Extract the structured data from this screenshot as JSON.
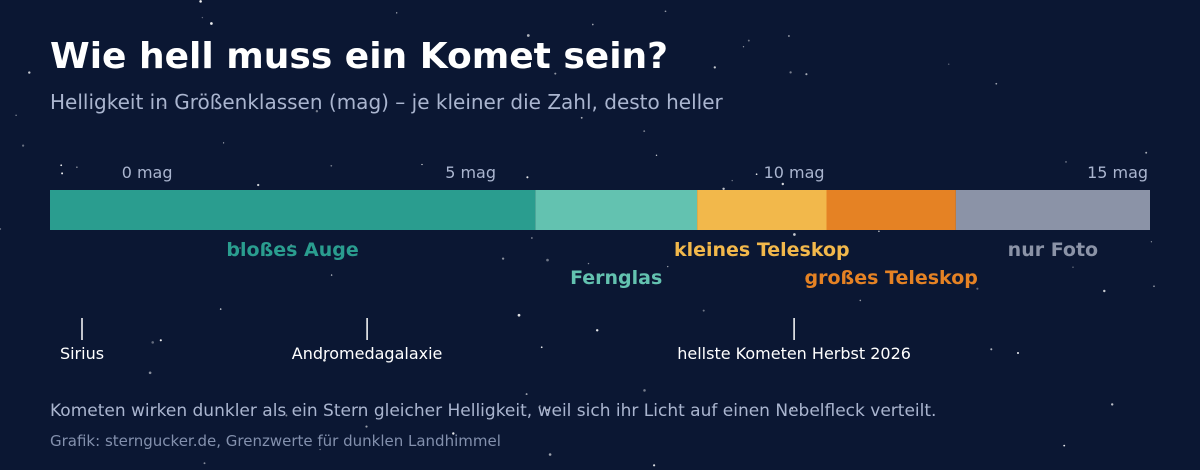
{
  "title": "Wie hell muss ein Komet sein?",
  "subtitle": "Helligkeit in Größenklassen (mag) – je kleiner die Zahl, desto heller",
  "footnote": "Kometen wirken dunkler als ein Stern gleicher Helligkeit, weil sich ihr Licht auf einen Nebelfleck verteilt.",
  "credit": "Grafik: sterngucker.de, Grenzwerte für dunklen Landhimmel",
  "chart_data": {
    "type": "bar",
    "orientation": "horizontal-scale",
    "axis": {
      "min": -1.5,
      "max": 15.5,
      "unit": "mag"
    },
    "ticks": [
      {
        "value": 0,
        "label": "0 mag"
      },
      {
        "value": 5,
        "label": "5 mag"
      },
      {
        "value": 10,
        "label": "10 mag"
      },
      {
        "value": 15,
        "label": "15 mag"
      }
    ],
    "segments": [
      {
        "label": "bloßes Auge",
        "from": -1.5,
        "to": 6,
        "color": "#2a9d8f",
        "label_row": 1
      },
      {
        "label": "Fernglas",
        "from": 6,
        "to": 8.5,
        "color": "#63c2b0",
        "label_row": 2
      },
      {
        "label": "kleines Teleskop",
        "from": 8.5,
        "to": 10.5,
        "color": "#f2b84b",
        "label_row": 1
      },
      {
        "label": "großes Teleskop",
        "from": 10.5,
        "to": 12.5,
        "color": "#e58224",
        "label_row": 2
      },
      {
        "label": "nur Foto",
        "from": 12.5,
        "to": 15.5,
        "color": "#8b93a7",
        "label_row": 1
      }
    ],
    "markers": [
      {
        "label": "Sirius",
        "value": -1.5
      },
      {
        "label": "Andromedagalaxie",
        "value": 3.4
      },
      {
        "label": "hellste Kometen Herbst 2026",
        "value": 10
      }
    ]
  }
}
